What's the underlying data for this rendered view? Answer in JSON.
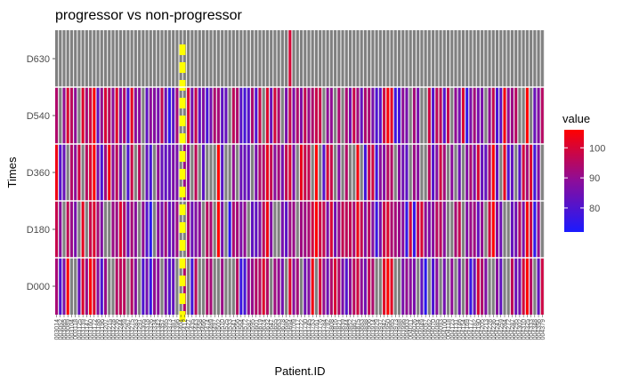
{
  "chart_data": {
    "type": "heatmap",
    "title": "progressor vs non-progressor",
    "xlabel": "Patient.ID",
    "ylabel": "Times",
    "y_categories": [
      "D000",
      "D180",
      "D360",
      "D540",
      "D630"
    ],
    "n_patients": 130,
    "highlight_patient_index": 33,
    "missing_color": "#808080",
    "highlight_color": "#ffff00",
    "legend": {
      "title": "value",
      "ticks": [
        80,
        90,
        100
      ],
      "range": [
        72,
        106
      ],
      "low_color": "#1a1aff",
      "high_color": "#ff0000"
    },
    "x_tick_labels": [
      "003014",
      "003052",
      "003065",
      "003089",
      "003104",
      "003118",
      "003125",
      "003139",
      "003147",
      "003160",
      "003172",
      "003188",
      "003196",
      "003207",
      "003215",
      "003228",
      "003236",
      "003244",
      "003259",
      "003267",
      "003275",
      "003283",
      "003291",
      "003305",
      "003318",
      "003326",
      "003334",
      "003342",
      "003357",
      "003365",
      "003373",
      "003381",
      "003396",
      "003404",
      "003412",
      "003427",
      "003435",
      "003443",
      "003458",
      "003466",
      "003474",
      "003489",
      "003497",
      "003502",
      "003510",
      "003525",
      "003533",
      "003541",
      "003556",
      "003564",
      "003572",
      "003587",
      "003595",
      "003601",
      "003619",
      "003624",
      "003632",
      "003647",
      "003655",
      "003663",
      "003678",
      "003686",
      "003694",
      "003709",
      "003717",
      "003722",
      "003730",
      "003745",
      "003753",
      "003761",
      "003776",
      "003784",
      "003792",
      "003808",
      "003816",
      "003821",
      "003839",
      "003844",
      "003852",
      "003867",
      "003875",
      "003883",
      "003898",
      "003906",
      "003914",
      "003929",
      "003937",
      "003942",
      "003950",
      "003965",
      "003973",
      "003988",
      "003996",
      "004003",
      "004011",
      "004026",
      "004034",
      "004049",
      "004057",
      "004062",
      "004070",
      "004085",
      "004093",
      "004100",
      "004118",
      "004123",
      "004131",
      "004146",
      "004154",
      "004169",
      "004177",
      "004182",
      "004190",
      "004205",
      "004213",
      "004228",
      "004236",
      "004241",
      "004259",
      "004264",
      "004272",
      "004287",
      "004295",
      "004302",
      "004310",
      "004325",
      "004333",
      "004348",
      "004356",
      "004379"
    ]
  }
}
